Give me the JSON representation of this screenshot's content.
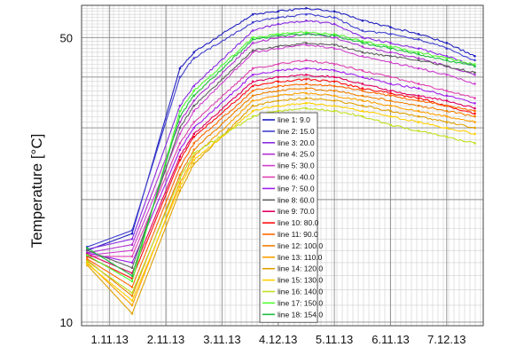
{
  "chart_data": {
    "type": "line",
    "title": "",
    "xlabel": "",
    "ylabel": "Temperature [°C]",
    "y_scale": "log",
    "ylim": [
      9.8,
      60
    ],
    "xlim": [
      0,
      14.3
    ],
    "grid": true,
    "legend_position": "center",
    "x_tick_positions": [
      1,
      3,
      5,
      7,
      9,
      11,
      13
    ],
    "x_tick_labels": [
      "1.11.13",
      "2.11.13",
      "3.11.13",
      "4.12.13",
      "5.11.13",
      "6.11.13",
      "7.12.13"
    ],
    "y_ticks": [
      10,
      50
    ],
    "y_tick_labels": [
      "10",
      "50"
    ],
    "series": [
      {
        "name": "line 1: 9.0",
        "color": "#2020c0",
        "x": [
          0.2,
          1.8,
          3.5,
          4.0,
          6.1,
          7.0,
          8.0,
          9.0,
          10.0,
          11.0,
          12.0,
          13.0,
          14.0
        ],
        "y": [
          15.0,
          16.5,
          42.0,
          46.0,
          57.0,
          58.0,
          59.0,
          58.0,
          55.0,
          53.0,
          51.0,
          48.5,
          45.0
        ]
      },
      {
        "name": "line 2: 15.0",
        "color": "#4040d0",
        "x": [
          0.2,
          1.8,
          3.5,
          4.0,
          6.1,
          7.0,
          8.0,
          9.0,
          10.0,
          11.0,
          12.0,
          13.0,
          14.0
        ],
        "y": [
          15.3,
          16.8,
          40.0,
          44.5,
          54.5,
          56.0,
          57.0,
          56.0,
          52.0,
          51.0,
          49.5,
          47.0,
          44.0
        ]
      },
      {
        "name": "line 3: 20.0",
        "color": "#8a2be2",
        "x": [
          0.2,
          1.8,
          3.5,
          4.0,
          6.1,
          7.0,
          8.0,
          9.0,
          10.0,
          11.0,
          12.0,
          13.0,
          14.0
        ],
        "y": [
          15.1,
          16.0,
          34.0,
          38.0,
          52.0,
          54.0,
          55.0,
          54.0,
          50.0,
          48.5,
          47.0,
          45.0,
          42.5
        ]
      },
      {
        "name": "line 4: 25.0",
        "color": "#b030d0",
        "x": [
          0.2,
          1.8,
          3.5,
          4.0,
          6.1,
          7.0,
          8.0,
          9.0,
          10.0,
          11.0,
          12.0,
          13.0,
          14.0
        ],
        "y": [
          14.8,
          15.5,
          31.0,
          35.0,
          48.5,
          50.0,
          51.0,
          50.0,
          47.5,
          46.0,
          44.5,
          42.5,
          40.5
        ]
      },
      {
        "name": "line 5: 30.0",
        "color": "#d040d0",
        "x": [
          0.2,
          1.8,
          3.5,
          4.0,
          6.1,
          7.0,
          8.0,
          9.0,
          10.0,
          11.0,
          12.0,
          13.0,
          14.0
        ],
        "y": [
          14.6,
          15.0,
          29.0,
          33.0,
          46.0,
          47.0,
          48.0,
          47.0,
          45.0,
          43.5,
          42.0,
          40.5,
          38.5
        ]
      },
      {
        "name": "line 6: 40.0",
        "color": "#e040b0",
        "x": [
          0.2,
          1.8,
          3.5,
          4.0,
          6.1,
          7.0,
          8.0,
          9.0,
          10.0,
          11.0,
          12.0,
          13.0,
          14.0
        ],
        "y": [
          14.5,
          14.5,
          27.5,
          31.0,
          42.0,
          43.0,
          44.0,
          43.0,
          41.5,
          40.0,
          38.5,
          37.0,
          35.5
        ]
      },
      {
        "name": "line 7: 50.0",
        "color": "#a020f0",
        "x": [
          0.2,
          1.8,
          3.5,
          4.0,
          6.1,
          7.0,
          8.0,
          9.0,
          10.0,
          11.0,
          12.0,
          13.0,
          14.0
        ],
        "y": [
          14.8,
          14.0,
          26.5,
          30.0,
          40.5,
          41.5,
          42.0,
          41.5,
          40.0,
          38.5,
          37.5,
          36.0,
          34.5
        ]
      },
      {
        "name": "line 8: 60.0",
        "color": "#606060",
        "x": [
          0.2,
          1.8,
          3.5,
          4.0,
          6.1,
          7.0,
          8.0,
          9.0,
          10.0,
          11.0,
          12.0,
          13.0,
          14.0
        ],
        "y": [
          15.0,
          13.6,
          30.0,
          34.0,
          46.5,
          47.5,
          48.5,
          48.0,
          46.0,
          45.0,
          44.0,
          42.5,
          41.0
        ]
      },
      {
        "name": "line 9: 70.0",
        "color": "#e00060",
        "x": [
          0.2,
          1.8,
          3.5,
          4.0,
          6.1,
          7.0,
          8.0,
          9.0,
          10.0,
          11.0,
          12.0,
          13.0,
          14.0
        ],
        "y": [
          14.7,
          13.2,
          25.5,
          29.0,
          39.0,
          40.0,
          40.5,
          40.0,
          38.5,
          37.0,
          36.0,
          35.0,
          33.5
        ]
      },
      {
        "name": "line 10: 80.0",
        "color": "#ff1010",
        "x": [
          0.2,
          1.8,
          3.5,
          4.0,
          6.1,
          7.0,
          8.0,
          9.0,
          10.0,
          11.0,
          12.0,
          13.0,
          14.0
        ],
        "y": [
          14.5,
          12.8,
          25.0,
          28.5,
          38.0,
          39.0,
          39.5,
          39.0,
          37.5,
          36.5,
          35.5,
          34.0,
          32.5
        ]
      },
      {
        "name": "line 11: 90.0",
        "color": "#ff6a00",
        "x": [
          0.2,
          1.8,
          3.5,
          4.0,
          6.1,
          7.0,
          8.0,
          9.0,
          10.0,
          11.0,
          12.0,
          13.0,
          14.0
        ],
        "y": [
          14.3,
          12.2,
          24.0,
          27.5,
          37.0,
          38.0,
          38.5,
          38.0,
          37.0,
          36.0,
          35.0,
          34.0,
          33.0
        ]
      },
      {
        "name": "line 12: 100.0",
        "color": "#f08000",
        "x": [
          0.2,
          1.8,
          3.5,
          4.0,
          6.1,
          7.0,
          8.0,
          9.0,
          10.0,
          11.0,
          12.0,
          13.0,
          14.0
        ],
        "y": [
          14.2,
          11.6,
          23.0,
          26.5,
          36.0,
          37.0,
          37.5,
          37.0,
          36.0,
          35.0,
          34.0,
          33.0,
          32.0
        ]
      },
      {
        "name": "line 13: 110.0",
        "color": "#ffa000",
        "x": [
          0.2,
          1.8,
          3.5,
          4.0,
          6.1,
          7.0,
          8.0,
          9.0,
          10.0,
          11.0,
          12.0,
          13.0,
          14.0
        ],
        "y": [
          14.0,
          11.0,
          22.0,
          25.5,
          35.0,
          36.0,
          36.5,
          36.0,
          35.0,
          34.0,
          33.0,
          32.0,
          31.0
        ]
      },
      {
        "name": "line 14: 120.0",
        "color": "#e0a000",
        "x": [
          0.2,
          1.8,
          3.5,
          4.0,
          6.1,
          7.0,
          8.0,
          9.0,
          10.0,
          11.0,
          12.0,
          13.0,
          14.0
        ],
        "y": [
          13.8,
          10.5,
          21.0,
          24.5,
          34.0,
          35.0,
          35.5,
          35.0,
          34.0,
          33.0,
          32.0,
          31.0,
          30.0
        ]
      },
      {
        "name": "line 15: 130.0",
        "color": "#ffd000",
        "x": [
          0.2,
          1.8,
          3.5,
          4.0,
          6.1,
          7.0,
          8.0,
          9.0,
          10.0,
          11.0,
          12.0,
          13.0,
          14.0
        ],
        "y": [
          13.9,
          11.3,
          21.5,
          25.0,
          33.0,
          34.0,
          34.5,
          34.0,
          33.0,
          32.0,
          31.0,
          30.0,
          29.0
        ]
      },
      {
        "name": "line 16: 140.0",
        "color": "#c0e020",
        "x": [
          0.2,
          1.8,
          3.5,
          4.0,
          6.1,
          7.0,
          8.0,
          9.0,
          10.0,
          11.0,
          12.0,
          13.0,
          14.0
        ],
        "y": [
          14.1,
          11.8,
          22.5,
          26.0,
          32.0,
          33.0,
          33.5,
          33.0,
          32.0,
          30.5,
          29.5,
          28.5,
          27.5
        ]
      },
      {
        "name": "line 17: 150.0",
        "color": "#50ff30",
        "x": [
          0.2,
          1.8,
          3.5,
          4.0,
          6.1,
          7.0,
          8.0,
          9.0,
          10.0,
          11.0,
          12.0,
          13.0,
          14.0
        ],
        "y": [
          14.6,
          12.6,
          33.0,
          37.0,
          50.0,
          51.0,
          51.5,
          51.0,
          49.0,
          47.5,
          46.0,
          44.5,
          43.0
        ]
      },
      {
        "name": "line 18: 154.0",
        "color": "#20c040",
        "x": [
          0.2,
          1.8,
          3.5,
          4.0,
          6.1,
          7.0,
          8.0,
          9.0,
          10.0,
          11.0,
          12.0,
          13.0,
          14.0
        ],
        "y": [
          15.2,
          13.0,
          32.0,
          36.0,
          49.5,
          50.5,
          51.0,
          50.5,
          48.5,
          47.0,
          45.5,
          44.0,
          42.5
        ]
      }
    ]
  }
}
